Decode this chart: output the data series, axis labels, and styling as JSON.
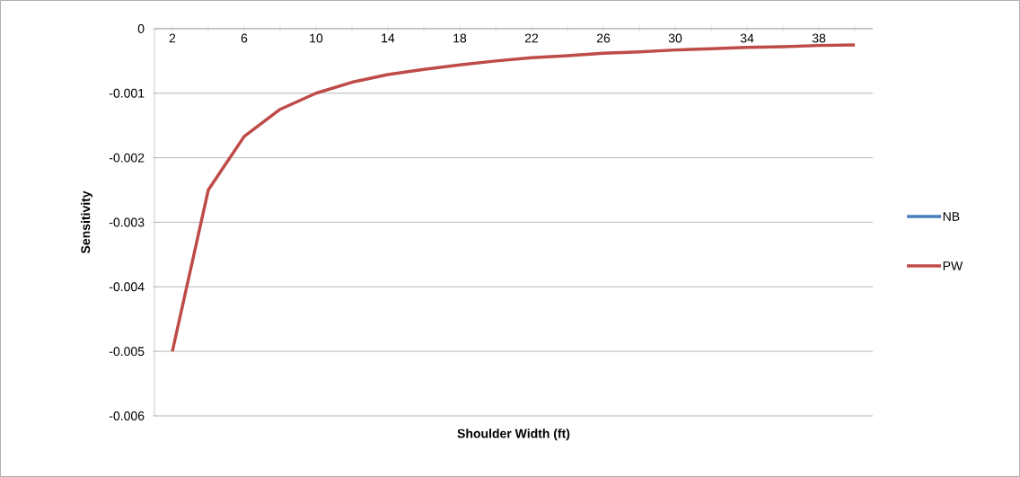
{
  "chart_data": {
    "type": "line",
    "xlabel": "Shoulder Width (ft)",
    "ylabel": "Sensitivity",
    "categories": [
      "2",
      null,
      "6",
      null,
      "10",
      null,
      "14",
      null,
      "18",
      null,
      "22",
      null,
      "26",
      null,
      "30",
      null,
      "34",
      null,
      "38",
      null
    ],
    "series": [
      {
        "name": "NB",
        "color": "#4a7ebb",
        "values": [
          null,
          null,
          null,
          null,
          null,
          null,
          null,
          null,
          null,
          null,
          null,
          null,
          null,
          null,
          null,
          null,
          null,
          null,
          null,
          null
        ]
      },
      {
        "name": "PW",
        "color": "#be4b48",
        "values": [
          -0.005,
          -0.0025,
          -0.00167,
          -0.00125,
          -0.001,
          -0.00083,
          -0.00071,
          -0.00063,
          -0.00056,
          -0.0005,
          -0.00045,
          -0.00042,
          -0.00038,
          -0.00036,
          -0.00033,
          -0.00031,
          -0.00029,
          -0.00028,
          -0.00026,
          -0.00025
        ]
      }
    ],
    "ylim": [
      -0.006,
      0
    ],
    "yticks": [
      0,
      -0.001,
      -0.002,
      -0.003,
      -0.004,
      -0.005,
      -0.006
    ],
    "grid": "y",
    "legend": "right",
    "marker": "none",
    "line_style": "solid"
  }
}
